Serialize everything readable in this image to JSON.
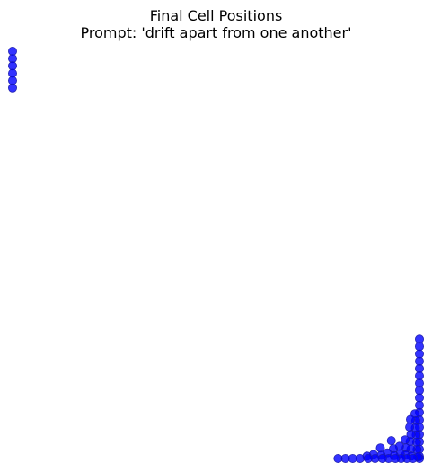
{
  "chart_data": {
    "type": "scatter",
    "title": "Final Cell Positions",
    "subtitle": "Prompt: 'drift apart from one another'",
    "xlabel": "",
    "ylabel": "",
    "xlim": [
      0,
      100
    ],
    "ylim": [
      0,
      100
    ],
    "grid": false,
    "axes_visible": false,
    "marker_color": "#0000ff",
    "series": [
      {
        "points": [
          [
            0,
            100
          ],
          [
            0,
            98.2
          ],
          [
            0,
            96.4
          ],
          [
            0,
            94.6
          ],
          [
            0,
            92.8
          ],
          [
            0,
            91.0
          ],
          [
            100,
            29.3
          ],
          [
            100,
            27.5
          ],
          [
            100,
            25.7
          ],
          [
            100,
            23.9
          ],
          [
            100,
            22.1
          ],
          [
            100,
            20.3
          ],
          [
            100,
            18.5
          ],
          [
            100,
            16.7
          ],
          [
            100,
            14.9
          ],
          [
            100,
            13.1
          ],
          [
            100,
            11.3
          ],
          [
            100,
            9.5
          ],
          [
            100,
            7.7
          ],
          [
            100,
            5.9
          ],
          [
            100,
            4.1
          ],
          [
            100,
            2.3
          ],
          [
            100,
            0.5
          ],
          [
            100,
            0
          ],
          [
            98.9,
            11.0
          ],
          [
            99.1,
            9.3
          ],
          [
            99.0,
            7.5
          ],
          [
            99.2,
            5.8
          ],
          [
            99.3,
            4.0
          ],
          [
            99.4,
            2.2
          ],
          [
            99.6,
            0.4
          ],
          [
            97.8,
            9.6
          ],
          [
            97.6,
            7.7
          ],
          [
            97.9,
            5.9
          ],
          [
            97.7,
            4.2
          ],
          [
            97.9,
            2.3
          ],
          [
            98.0,
            0.6
          ],
          [
            98.4,
            0
          ],
          [
            96.5,
            4.6
          ],
          [
            96.7,
            2.6
          ],
          [
            96.6,
            0.9
          ],
          [
            96.9,
            0
          ],
          [
            95.1,
            3.0
          ],
          [
            95.3,
            1.2
          ],
          [
            95.5,
            0
          ],
          [
            93.1,
            4.4
          ],
          [
            93.6,
            2.4
          ],
          [
            93.8,
            0.7
          ],
          [
            94.1,
            0
          ],
          [
            92.1,
            1.4
          ],
          [
            92.4,
            0
          ],
          [
            90.4,
            2.6
          ],
          [
            90.6,
            0.8
          ],
          [
            90.9,
            0
          ],
          [
            88.7,
            1.0
          ],
          [
            89.1,
            0
          ],
          [
            87.1,
            0.6
          ],
          [
            87.4,
            0
          ],
          [
            85.4,
            0
          ],
          [
            83.6,
            0
          ],
          [
            81.8,
            0
          ],
          [
            80.0,
            0
          ]
        ]
      }
    ]
  }
}
